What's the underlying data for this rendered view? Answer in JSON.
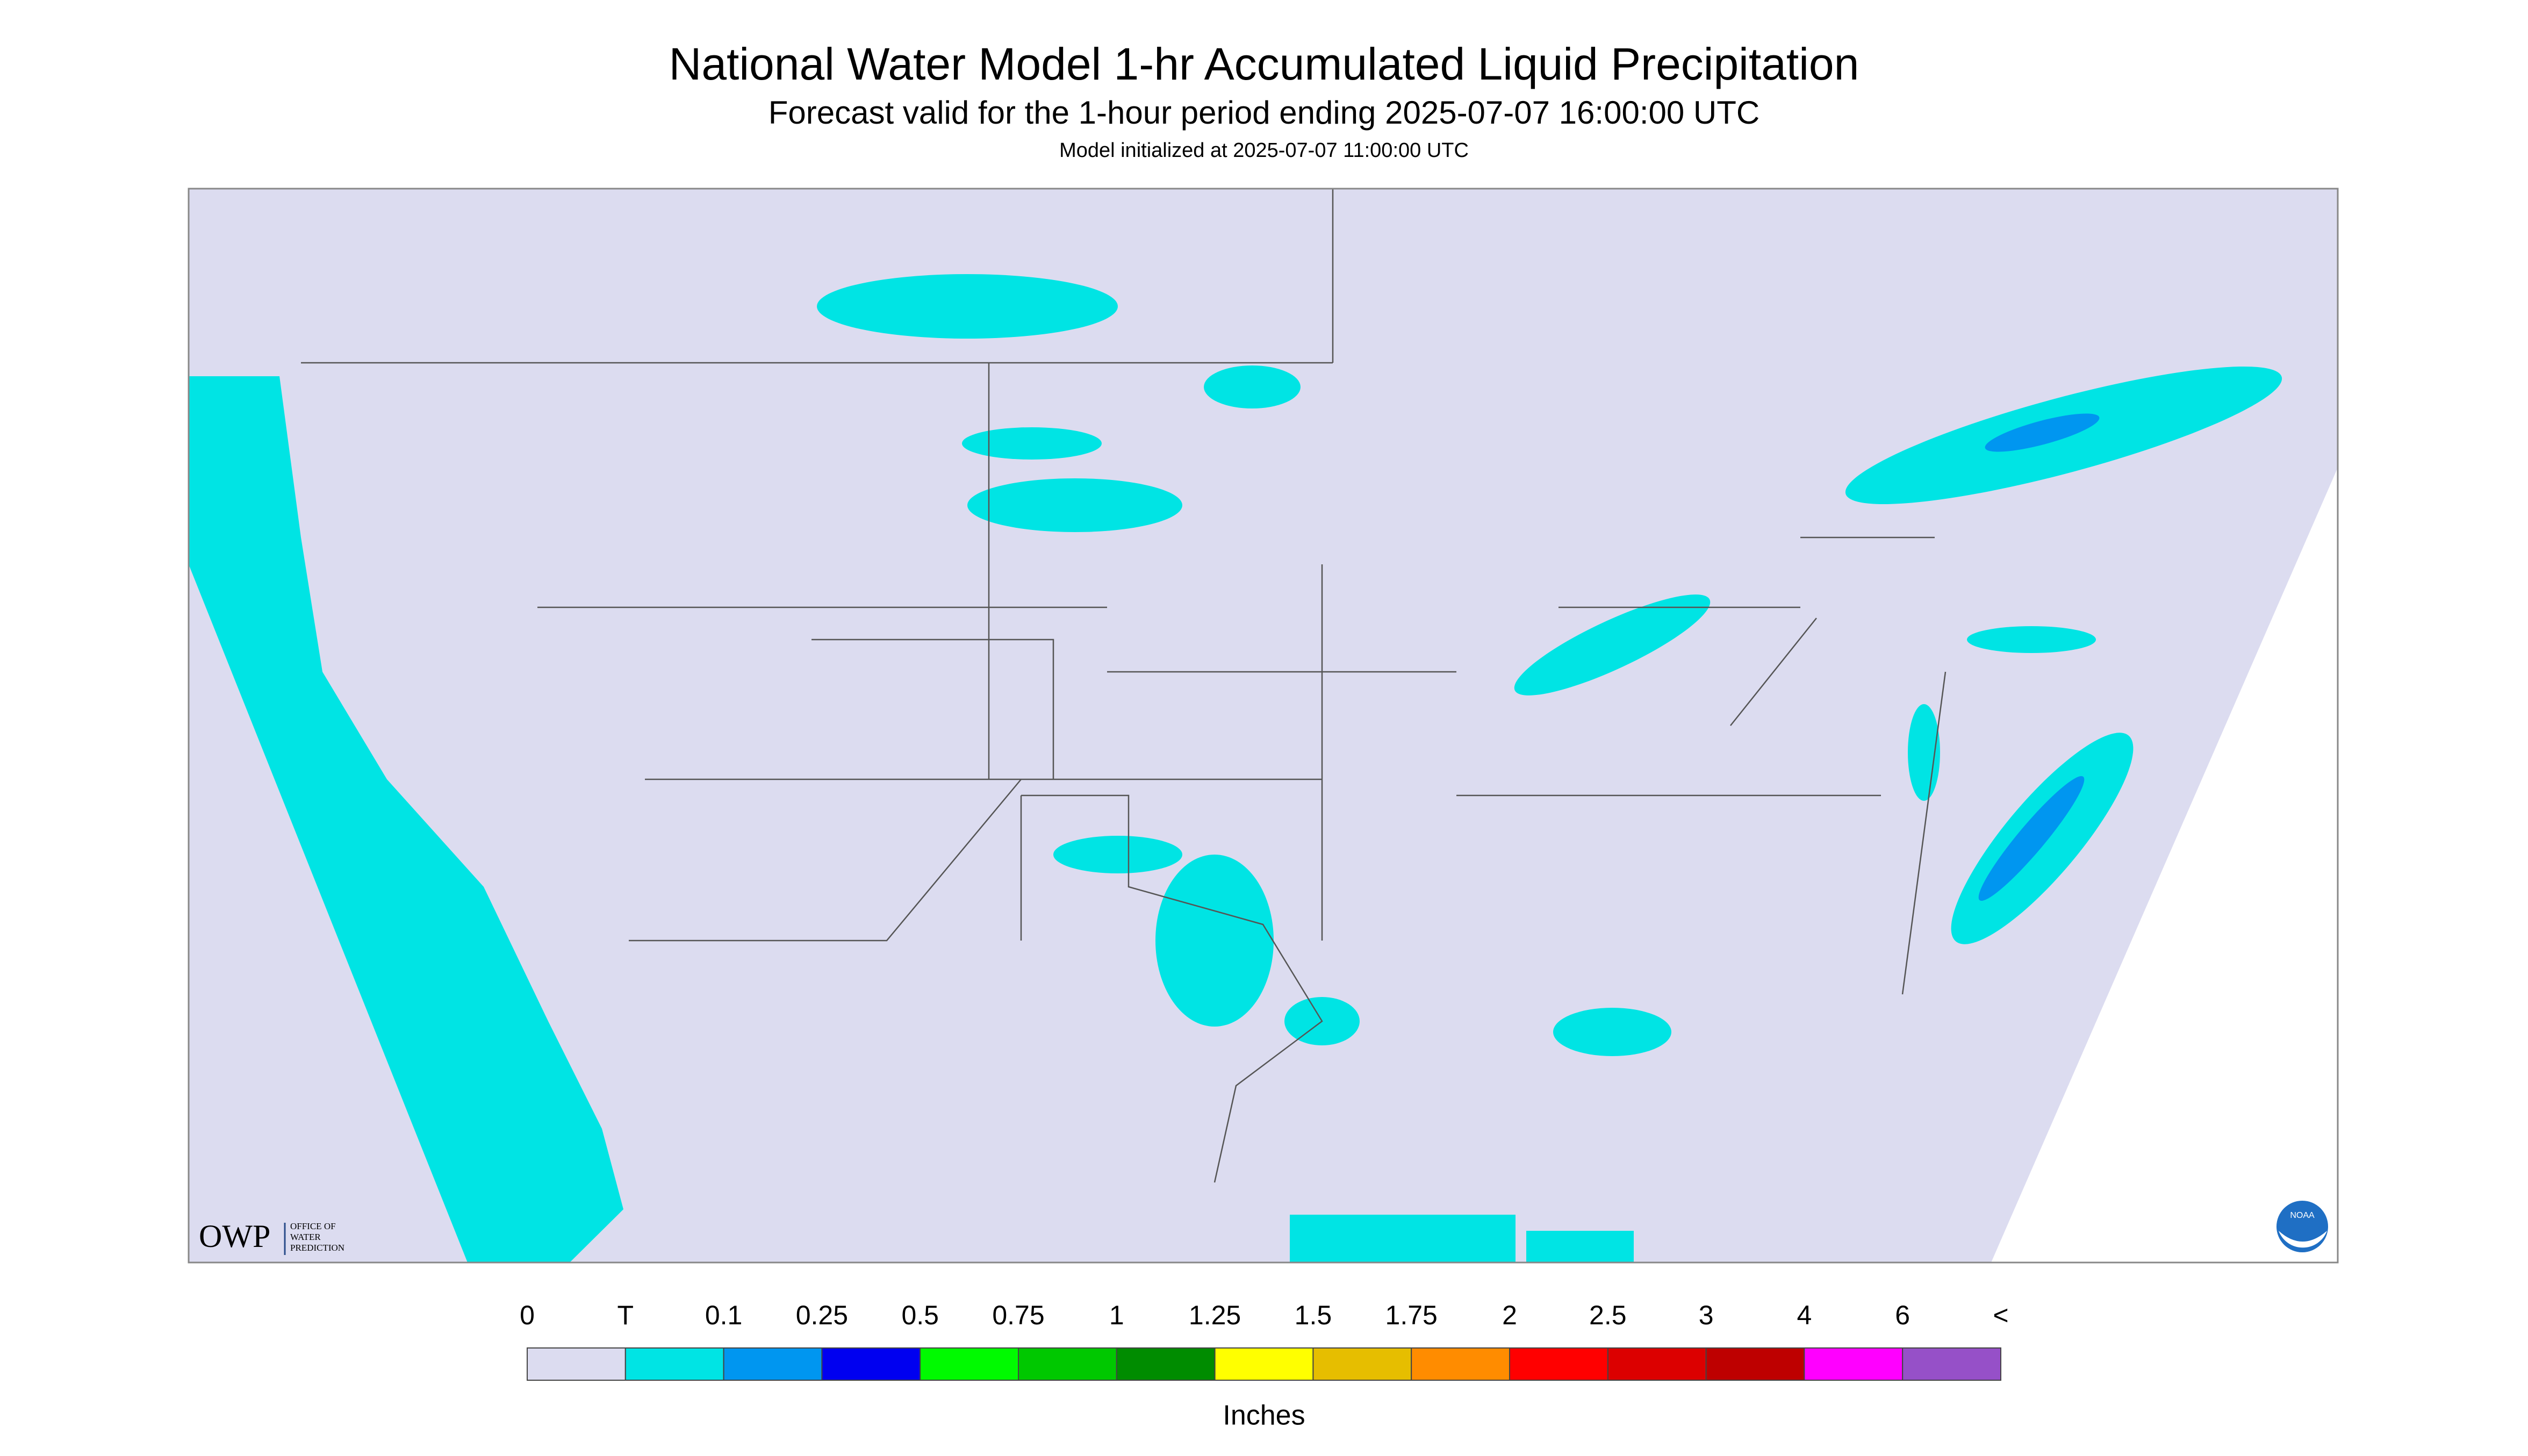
{
  "header": {
    "title": "National Water Model 1-hr Accumulated Liquid Precipitation",
    "subtitle": "Forecast valid for the 1-hour period ending 2025-07-07 16:00:00 UTC",
    "initialized": "Model initialized at 2025-07-07 11:00:00 UTC"
  },
  "logo": {
    "name": "OWP",
    "text": [
      "OFFICE OF",
      "WATER",
      "PREDICTION"
    ],
    "agency": "NOAA"
  },
  "legend": {
    "labels": [
      "0",
      "T",
      "0.1",
      "0.25",
      "0.5",
      "0.75",
      "1",
      "1.25",
      "1.5",
      "1.75",
      "2",
      "2.5",
      "3",
      "4",
      "6",
      "<"
    ],
    "colors": [
      "#dcdcf0",
      "#00e4e4",
      "#0096f0",
      "#0000f0",
      "#00fa00",
      "#00c800",
      "#008c00",
      "#ffff00",
      "#e6be00",
      "#ff8c00",
      "#ff0000",
      "#dc0000",
      "#be0000",
      "#ff00ff",
      "#9650c8"
    ],
    "units": "Inches"
  }
}
